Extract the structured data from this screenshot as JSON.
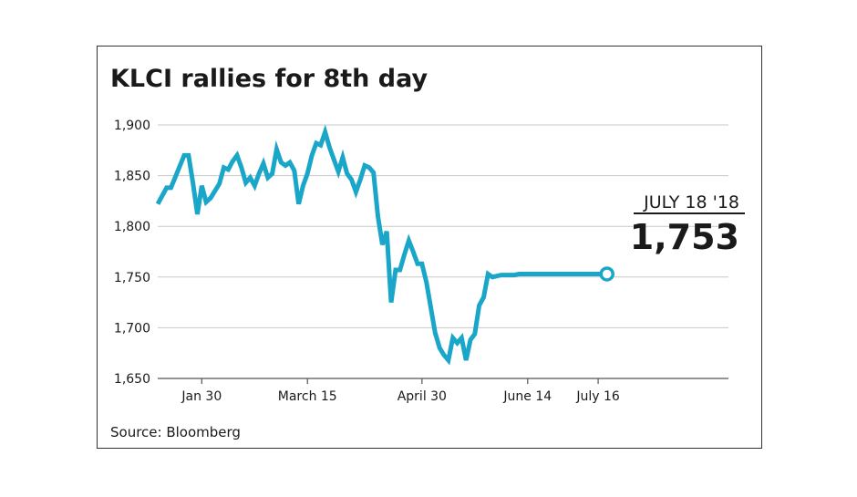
{
  "chart_data": {
    "type": "line",
    "title": "KLCI rallies for 8th day",
    "source": "Source: Bloomberg",
    "xlabel": "",
    "ylabel": "",
    "ylim": [
      1650,
      1900
    ],
    "yticks": [
      {
        "value": 1650,
        "label": "1,650"
      },
      {
        "value": 1700,
        "label": "1,700"
      },
      {
        "value": 1750,
        "label": "1,750"
      },
      {
        "value": 1800,
        "label": "1,800"
      },
      {
        "value": 1850,
        "label": "1,850"
      },
      {
        "value": 1900,
        "label": "1,900"
      }
    ],
    "xlim": [
      0,
      130
    ],
    "xticks": [
      {
        "x": 10,
        "label": "Jan 30"
      },
      {
        "x": 34,
        "label": "March 15"
      },
      {
        "x": 60,
        "label": "April 30"
      },
      {
        "x": 84,
        "label": "June 14"
      },
      {
        "x": 100,
        "label": "July 16"
      }
    ],
    "grid": true,
    "line_color": "#1aa6c8",
    "annotation": {
      "date_label": "JULY 18 '18",
      "value_label": "1,753"
    },
    "series": [
      {
        "name": "KLCI",
        "x": [
          0,
          2,
          3,
          6,
          7,
          8,
          9,
          10,
          11,
          12,
          13,
          14,
          15,
          16,
          17,
          18,
          19,
          20,
          21,
          22,
          23,
          24,
          25,
          26,
          27,
          28,
          29,
          30,
          31,
          32,
          33,
          34,
          35,
          36,
          37,
          38,
          39,
          40,
          41,
          42,
          43,
          44,
          45,
          46,
          47,
          48,
          49,
          50,
          51,
          52,
          53,
          54,
          55,
          56,
          57,
          58,
          59,
          60,
          61,
          62,
          63,
          64,
          65,
          66,
          67,
          68,
          69,
          70,
          71,
          72,
          73,
          74,
          75,
          76,
          77,
          78,
          79,
          80,
          81,
          82,
          83,
          84,
          85,
          86,
          87,
          88,
          89,
          90,
          91,
          92,
          93,
          94,
          95,
          96,
          97,
          98,
          99,
          100,
          101,
          102
        ],
        "values": [
          1822,
          1838,
          1838,
          1870,
          1870,
          1843,
          1812,
          1840,
          1824,
          1828,
          1835,
          1842,
          1858,
          1856,
          1864,
          1870,
          1858,
          1843,
          1848,
          1840,
          1852,
          1862,
          1848,
          1852,
          1876,
          1863,
          1860,
          1863,
          1855,
          1822,
          1840,
          1852,
          1870,
          1882,
          1880,
          1893,
          1878,
          1866,
          1854,
          1868,
          1852,
          1846,
          1834,
          1846,
          1860,
          1858,
          1853,
          1810,
          1782,
          1795,
          1725,
          1757,
          1757,
          1772,
          1786,
          1775,
          1763,
          1763,
          1745,
          1720,
          1695,
          1680,
          1673,
          1668,
          1690,
          1685,
          1690,
          1668,
          1688,
          1694,
          1722,
          1730,
          1753,
          1750,
          1751,
          1752,
          1752,
          1752,
          1752,
          1753,
          1753,
          1753,
          1753,
          1753,
          1753,
          1753,
          1753,
          1753,
          1753,
          1753,
          1753,
          1753,
          1753,
          1753,
          1753,
          1753,
          1753,
          1753,
          1753,
          1753
        ]
      }
    ]
  }
}
